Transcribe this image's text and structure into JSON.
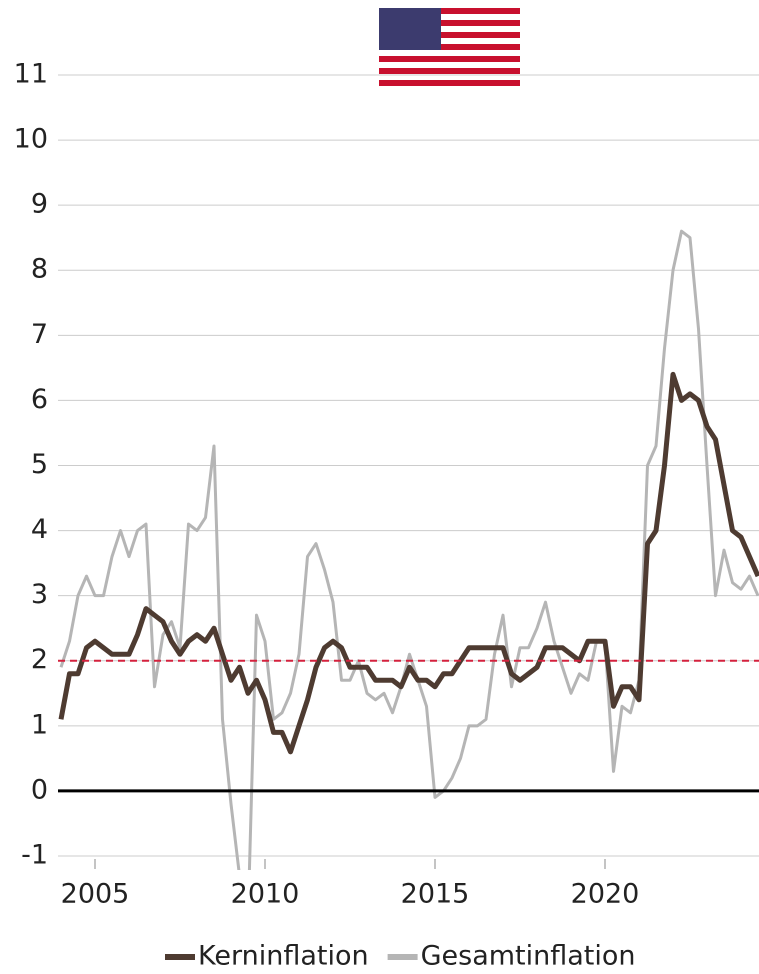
{
  "chart_data": {
    "type": "line",
    "x": [
      2004,
      2004.25,
      2004.5,
      2004.75,
      2005,
      2005.25,
      2005.5,
      2005.75,
      2006,
      2006.25,
      2006.5,
      2006.75,
      2007,
      2007.25,
      2007.5,
      2007.75,
      2008,
      2008.25,
      2008.5,
      2008.75,
      2009,
      2009.25,
      2009.5,
      2009.75,
      2010,
      2010.25,
      2010.5,
      2010.75,
      2011,
      2011.25,
      2011.5,
      2011.75,
      2012,
      2012.25,
      2012.5,
      2012.75,
      2013,
      2013.25,
      2013.5,
      2013.75,
      2014,
      2014.25,
      2014.5,
      2014.75,
      2015,
      2015.25,
      2015.5,
      2015.75,
      2016,
      2016.25,
      2016.5,
      2016.75,
      2017,
      2017.25,
      2017.5,
      2017.75,
      2018,
      2018.25,
      2018.5,
      2018.75,
      2019,
      2019.25,
      2019.5,
      2019.75,
      2020,
      2020.25,
      2020.5,
      2020.75,
      2021,
      2021.25,
      2021.5,
      2021.75,
      2022,
      2022.25,
      2022.5,
      2022.75,
      2023,
      2023.25,
      2023.5,
      2023.75,
      2024,
      2024.25,
      2024.5
    ],
    "series": [
      {
        "name": "Gesamtinflation",
        "color": "#b5b5b5",
        "width": 3,
        "values": [
          1.9,
          2.3,
          3.0,
          3.3,
          3.0,
          3.0,
          3.6,
          4.0,
          3.6,
          4.0,
          4.1,
          1.6,
          2.4,
          2.6,
          2.2,
          4.1,
          4.0,
          4.2,
          5.3,
          1.1,
          -0.2,
          -1.3,
          -2.0,
          2.7,
          2.3,
          1.1,
          1.2,
          1.5,
          2.1,
          3.6,
          3.8,
          3.4,
          2.9,
          1.7,
          1.7,
          2.0,
          1.5,
          1.4,
          1.5,
          1.2,
          1.6,
          2.1,
          1.7,
          1.3,
          -0.1,
          0.0,
          0.2,
          0.5,
          1.0,
          1.0,
          1.1,
          2.1,
          2.7,
          1.6,
          2.2,
          2.2,
          2.5,
          2.9,
          2.3,
          1.9,
          1.5,
          1.8,
          1.7,
          2.3,
          2.3,
          0.3,
          1.3,
          1.2,
          1.7,
          5.0,
          5.3,
          6.8,
          8.0,
          8.6,
          8.5,
          7.1,
          5.0,
          3.0,
          3.7,
          3.2,
          3.1,
          3.3,
          3.0
        ]
      },
      {
        "name": "Kerninflation",
        "color": "#4e3b31",
        "width": 5,
        "values": [
          1.1,
          1.8,
          1.8,
          2.2,
          2.3,
          2.2,
          2.1,
          2.1,
          2.1,
          2.4,
          2.8,
          2.7,
          2.6,
          2.3,
          2.1,
          2.3,
          2.4,
          2.3,
          2.5,
          2.1,
          1.7,
          1.9,
          1.5,
          1.7,
          1.4,
          0.9,
          0.9,
          0.6,
          1.0,
          1.4,
          1.9,
          2.2,
          2.3,
          2.2,
          1.9,
          1.9,
          1.9,
          1.7,
          1.7,
          1.7,
          1.6,
          1.9,
          1.7,
          1.7,
          1.6,
          1.8,
          1.8,
          2.0,
          2.2,
          2.2,
          2.2,
          2.2,
          2.2,
          1.8,
          1.7,
          1.8,
          1.9,
          2.2,
          2.2,
          2.2,
          2.1,
          2.0,
          2.3,
          2.3,
          2.3,
          1.3,
          1.6,
          1.6,
          1.4,
          3.8,
          4.0,
          5.0,
          6.4,
          6.0,
          6.1,
          6.0,
          5.6,
          5.4,
          4.7,
          4.0,
          3.9,
          3.6,
          3.3
        ]
      }
    ],
    "legend_order": [
      1,
      0
    ],
    "xlim": [
      2004,
      2024.5
    ],
    "xticks": [
      2005,
      2010,
      2015,
      2020
    ],
    "ylim": [
      -1.2,
      11
    ],
    "yticks": [
      -1,
      0,
      1,
      2,
      3,
      4,
      5,
      6,
      7,
      8,
      9,
      10,
      11
    ],
    "grid": true,
    "reference_lines": [
      {
        "value": 0,
        "color": "#000000",
        "style": "solid"
      },
      {
        "value": 2,
        "color": "#d4213d",
        "style": "dashed"
      }
    ]
  }
}
